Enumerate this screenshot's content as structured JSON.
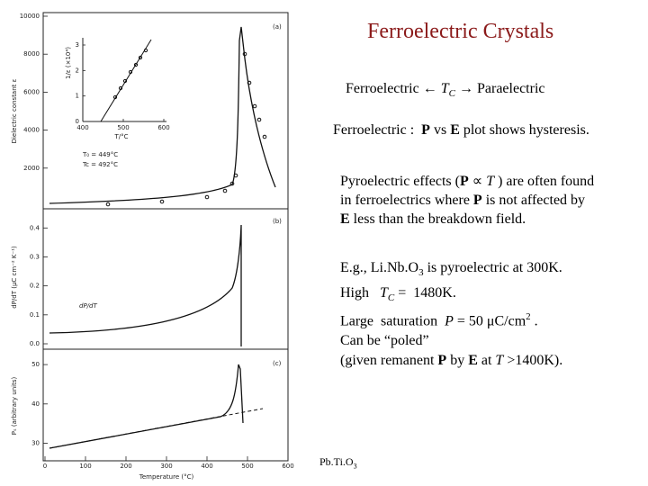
{
  "slide": {
    "title": "Ferroelectric Crystals",
    "transition": [
      "Ferroelectric ",
      "←",
      " T",
      "C",
      " → Paraelectric"
    ],
    "hysteresis": [
      "Ferroelectric :  ",
      "P",
      " vs ",
      "E",
      " plot shows hysteresis."
    ],
    "pyro": [
      [
        "Pyroelectric effects (",
        "P",
        " ∝ ",
        "T",
        " ) are often found"
      ],
      [
        "in ferroelectrics where ",
        "P",
        " is not affected by"
      ],
      [
        "E",
        " less than the breakdown field."
      ]
    ],
    "example": [
      [
        "E.g., Li.Nb.O",
        "3",
        " is pyroelectric at 300K."
      ],
      [
        "High   ",
        "T",
        "C",
        " =  1480K."
      ],
      [
        "Large  saturation  ",
        "P",
        " = 50 μC/cm",
        "2",
        " ."
      ],
      [
        "Can be “poled”"
      ],
      [
        "(given remanent ",
        "P",
        " by ",
        "E",
        " at ",
        "T",
        " >1400K)."
      ]
    ],
    "caption": [
      "Pb.Ti.O",
      "3"
    ]
  },
  "figure": {
    "x_label": "Temperature (°C)",
    "xlim": [
      0,
      600
    ],
    "xticks": [
      0,
      100,
      200,
      300,
      400,
      500,
      600
    ],
    "panels": [
      {
        "label": "(a)",
        "y_label": "Dielectric constant ε",
        "ylim": [
          0,
          10000
        ],
        "yticks": [
          2000,
          4000,
          6000,
          8000,
          10000
        ]
      },
      {
        "label": "(b)",
        "y_label": "dP/dT (μC cm⁻² K⁻¹)",
        "ylim": [
          0,
          0.46
        ],
        "yticks": [
          {
            "value": 0,
            "label": "0.0"
          },
          0.1,
          0.2,
          0.3,
          0.4
        ],
        "annotation": "dP/dT"
      },
      {
        "label": "(c)",
        "y_label": "Pₛ (arbitrary units)",
        "ylim": [
          26,
          53
        ],
        "yticks": [
          30,
          40,
          50
        ]
      }
    ],
    "inset": {
      "x_label": "T/°C",
      "y_label": "1/ε (×10⁴)",
      "xticks": [
        400,
        500,
        600
      ],
      "yticks": [
        0,
        1,
        2,
        3
      ],
      "notes": [
        "T₀ = 449°C",
        "Tc = 492°C"
      ]
    }
  }
}
